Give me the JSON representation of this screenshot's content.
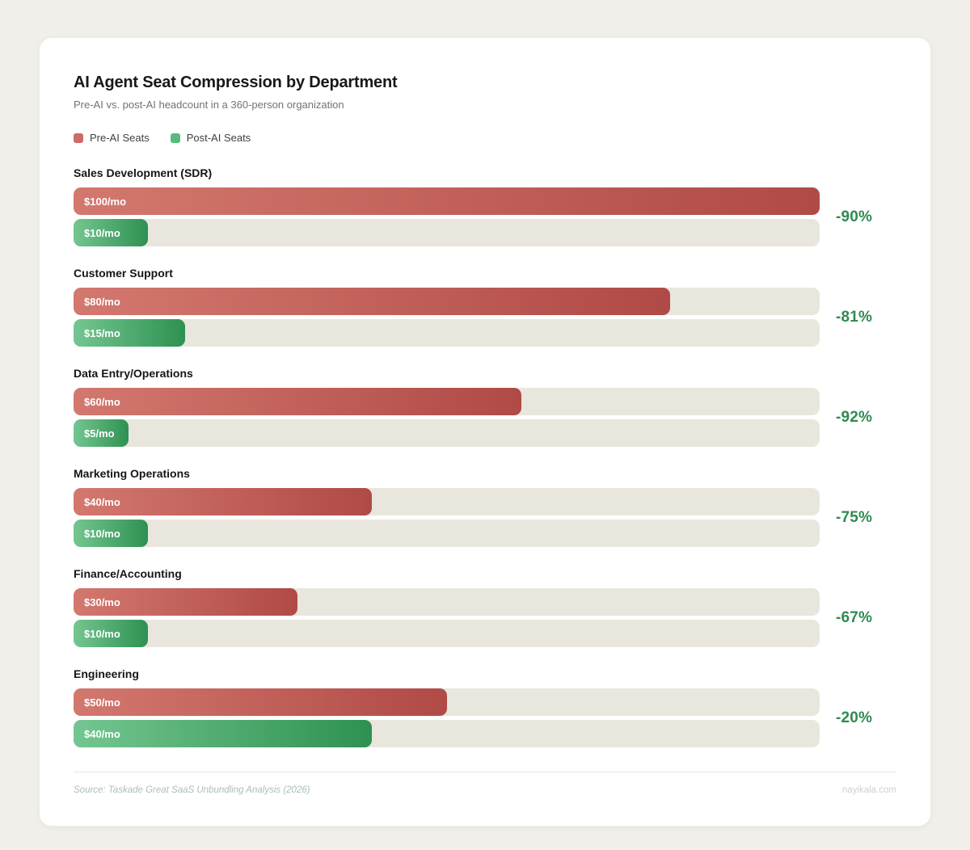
{
  "header": {
    "title": "AI Agent Seat Compression by Department",
    "subtitle": "Pre-AI vs. post-AI headcount in a 360-person organization"
  },
  "legend": {
    "items": [
      {
        "label": "Pre-AI Seats",
        "color": "#cd6b66"
      },
      {
        "label": "Post-AI Seats",
        "color": "#57bb7e"
      }
    ]
  },
  "chart_data": {
    "type": "bar",
    "orientation": "horizontal",
    "title": "AI Agent Seat Compression by Department",
    "subtitle": "Pre-AI vs. post-AI headcount in a 360-person organization",
    "xlim": [
      0,
      100
    ],
    "grid": false,
    "legend_position": "top-left",
    "categories": [
      "Sales Development (SDR)",
      "Customer Support",
      "Data Entry/Operations",
      "Marketing Operations",
      "Finance/Accounting",
      "Engineering"
    ],
    "series": [
      {
        "name": "Pre-AI Seats",
        "values": [
          100,
          80,
          60,
          40,
          30,
          50
        ],
        "bar_labels": [
          "$100/mo",
          "$80/mo",
          "$60/mo",
          "$40/mo",
          "$30/mo",
          "$50/mo"
        ],
        "color_gradient": [
          "#d3786f",
          "#b04a46"
        ]
      },
      {
        "name": "Post-AI Seats",
        "values": [
          10,
          15,
          5,
          10,
          10,
          40
        ],
        "bar_labels": [
          "$10/mo",
          "$15/mo",
          "$5/mo",
          "$10/mo",
          "$10/mo",
          "$40/mo"
        ],
        "color_gradient": [
          "#74c690",
          "#2e9151"
        ]
      }
    ],
    "annotations": [
      "-90%",
      "-81%",
      "-92%",
      "-75%",
      "-67%",
      "-20%"
    ],
    "annotation_color": "#2e8b51",
    "track_color": "#e9e6de"
  },
  "footer": {
    "source": "Source: Taskade Great SaaS Unbundling Analysis (2026)",
    "brand": "nayikala.com"
  }
}
